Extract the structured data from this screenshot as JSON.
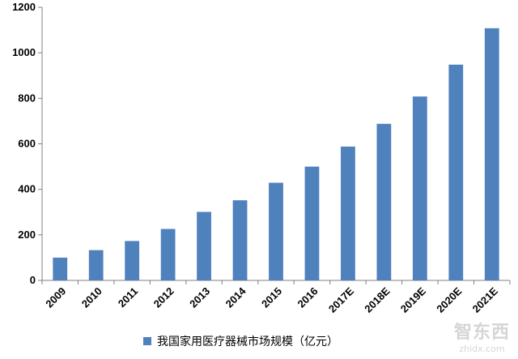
{
  "chart_data": {
    "type": "bar",
    "categories": [
      "2009",
      "2010",
      "2011",
      "2012",
      "2013",
      "2014",
      "2015",
      "2016",
      "2017E",
      "2018E",
      "2019E",
      "2020E",
      "2021E"
    ],
    "series": [
      {
        "name": "我国家用医疗器械市场规模（亿元）",
        "values": [
          100,
          133,
          173,
          226,
          301,
          352,
          429,
          500,
          588,
          688,
          808,
          948,
          1108
        ]
      }
    ],
    "ylim": [
      0,
      1200
    ],
    "yticks": [
      "0",
      "200",
      "400",
      "600",
      "800",
      "1000",
      "1200"
    ],
    "grid": false,
    "legend_position": "bottom",
    "bar_color": "#4f81bd"
  },
  "watermark": {
    "main": "智东西",
    "sub": "zhidx.com"
  }
}
